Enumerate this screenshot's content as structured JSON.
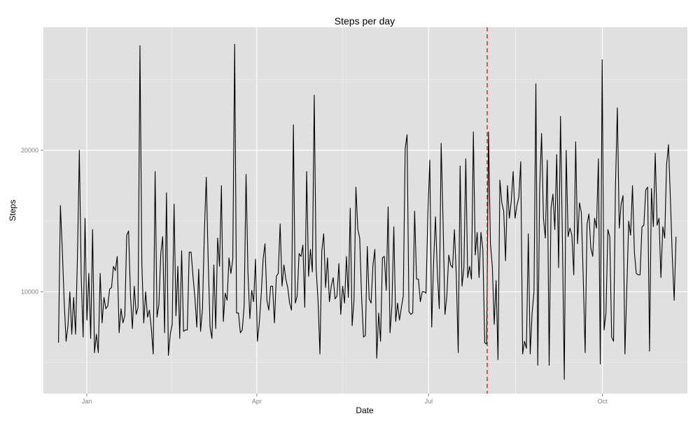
{
  "chart_data": {
    "type": "line",
    "title": "Steps per day",
    "xlabel": "Date",
    "ylabel": "Steps",
    "x_ticks": [
      "Jan",
      "Apr",
      "Jul",
      "Oct"
    ],
    "y_ticks": [
      "10000",
      "20000"
    ],
    "xlim": [
      "2013-12-09",
      "2014-11-15"
    ],
    "ylim": [
      2800,
      28700
    ],
    "grid": true,
    "background": "#e0e0e0",
    "grid_color": "#ffffff",
    "line_color": "#000000",
    "reference_line": {
      "x": "2014-08-01",
      "color": "#cc0000",
      "style": "dashed"
    },
    "series": [
      {
        "x_start": "2013-12-17",
        "x_end": "2014-11-09",
        "y": [
          6400,
          16100,
          13000,
          9300,
          6500,
          7600,
          10000,
          7000,
          9600,
          7000,
          12500,
          20000,
          11000,
          6800,
          15200,
          8000,
          11300,
          6700,
          14400,
          5700,
          7000,
          5700,
          11300,
          7800,
          9600,
          8800,
          9000,
          10200,
          10300,
          11800,
          11500,
          12500,
          7100,
          8800,
          7800,
          8300,
          14000,
          14300,
          9700,
          7400,
          10400,
          8400,
          8900,
          27400,
          12000,
          7800,
          10000,
          8200,
          8700,
          7400,
          5600,
          18500,
          8200,
          9100,
          12700,
          13900,
          7100,
          17000,
          5500,
          7000,
          7700,
          16200,
          8300,
          11800,
          6700,
          12900,
          7200,
          7300,
          7300,
          12800,
          12800,
          11100,
          9600,
          7500,
          11600,
          7200,
          8800,
          14200,
          18100,
          12300,
          7500,
          6700,
          11900,
          7400,
          13800,
          11800,
          17500,
          7900,
          9900,
          9400,
          12400,
          11300,
          12300,
          27500,
          8500,
          8500,
          7100,
          7300,
          9000,
          18300,
          11400,
          8100,
          10100,
          9300,
          12300,
          6500,
          7800,
          9800,
          12300,
          13400,
          9400,
          8700,
          10400,
          10400,
          7800,
          11100,
          11300,
          14800,
          10400,
          11900,
          10900,
          10300,
          9200,
          8700,
          21800,
          9200,
          9700,
          12700,
          12500,
          13300,
          8900,
          18500,
          11100,
          13000,
          11400,
          23900,
          11600,
          9400,
          5600,
          12900,
          14100,
          10300,
          12400,
          9300,
          10400,
          11000,
          9500,
          9700,
          12000,
          8400,
          10400,
          9200,
          12500,
          9600,
          15900,
          7600,
          9400,
          17400,
          14400,
          13800,
          9600,
          6800,
          6900,
          13200,
          9500,
          9200,
          11900,
          13000,
          5300,
          8500,
          6500,
          12400,
          12500,
          10100,
          16000,
          7100,
          9000,
          14600,
          7900,
          9200,
          8000,
          8900,
          9700,
          20100,
          21100,
          8600,
          8400,
          8500,
          15700,
          10900,
          10900,
          9300,
          10000,
          10000,
          9900,
          15600,
          19300,
          7500,
          12100,
          15300,
          11300,
          8800,
          20500,
          15000,
          8400,
          9700,
          12600,
          11900,
          11700,
          14400,
          11100,
          5700,
          18900,
          10400,
          11700,
          19400,
          11000,
          11800,
          10900,
          21300,
          12600,
          14200,
          11000,
          14200,
          13000,
          6400,
          6300,
          21300,
          13400,
          11800,
          7700,
          10800,
          5200,
          17900,
          16300,
          15700,
          12200,
          17500,
          15200,
          16400,
          18500,
          15200,
          16100,
          16700,
          19200,
          5600,
          6500,
          6000,
          14100,
          5600,
          8500,
          10000,
          24700,
          4800,
          17300,
          21200,
          15200,
          13800,
          19300,
          4800,
          15900,
          16900,
          14400,
          19700,
          11700,
          22400,
          13700,
          3800,
          20000,
          13900,
          14500,
          14000,
          11200,
          20600,
          13400,
          16300,
          15600,
          11000,
          5700,
          14800,
          15500,
          13100,
          12500,
          15200,
          14500,
          19400,
          4900,
          26400,
          7300,
          8500,
          14400,
          13900,
          6800,
          6500,
          17400,
          23000,
          14500,
          16200,
          16800,
          5600,
          10200,
          15000,
          14000,
          17500,
          12800,
          11300,
          11200,
          11200,
          14600,
          14700,
          17200,
          17400,
          5800,
          17300,
          14600,
          19800,
          14700,
          15200,
          11000,
          14600,
          13800,
          19000,
          20400,
          16600,
          12500,
          9400,
          13900
        ]
      }
    ]
  }
}
